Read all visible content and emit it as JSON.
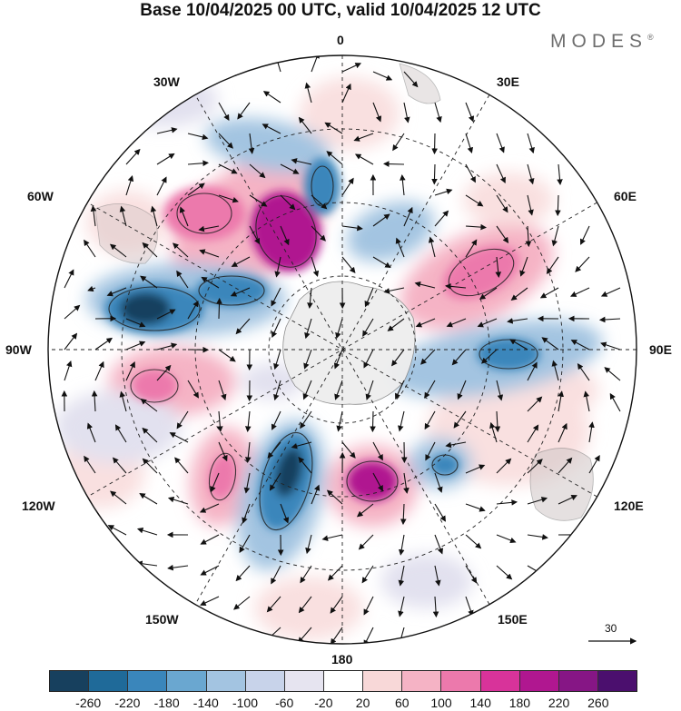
{
  "title": "Base 10/04/2025 00 UTC, valid 10/04/2025 12 UTC",
  "brand": "MODES",
  "brand_mark": "®",
  "longitude_labels": {
    "top": "0",
    "top_left": "30W",
    "top_right": "30E",
    "upper_left": "60W",
    "upper_right": "60E",
    "left": "90W",
    "right": "90E",
    "lower_left": "120W",
    "lower_right": "120E",
    "bottom_left": "150W",
    "bottom_right": "150E",
    "bottom": "180"
  },
  "reference_vector": {
    "label": "30"
  },
  "colorbar": {
    "ticks": [
      "-260",
      "-220",
      "-180",
      "-140",
      "-100",
      "-60",
      "-20",
      "20",
      "60",
      "100",
      "140",
      "180",
      "220",
      "260"
    ],
    "colors": [
      "#17405e",
      "#1f6a99",
      "#3a86bb",
      "#6aa7d0",
      "#a3c4e1",
      "#c8d3ea",
      "#e6e4f0",
      "#ffffff",
      "#f8d8d8",
      "#f5b3c5",
      "#ec79ac",
      "#d8339a",
      "#b01790",
      "#861685",
      "#4b0f6e"
    ]
  },
  "anomaly_colors": {
    "neg_strong": "#17405e",
    "neg_mid": "#3a86bb",
    "neg_light": "#a3c4e1",
    "neg_faint": "#e2e1ef",
    "pos_faint": "#f9e0e0",
    "pos_light": "#f5b3c5",
    "pos_mid": "#ec79ac",
    "pos_strong": "#b01790",
    "land_gray": "#9a9a9a"
  }
}
